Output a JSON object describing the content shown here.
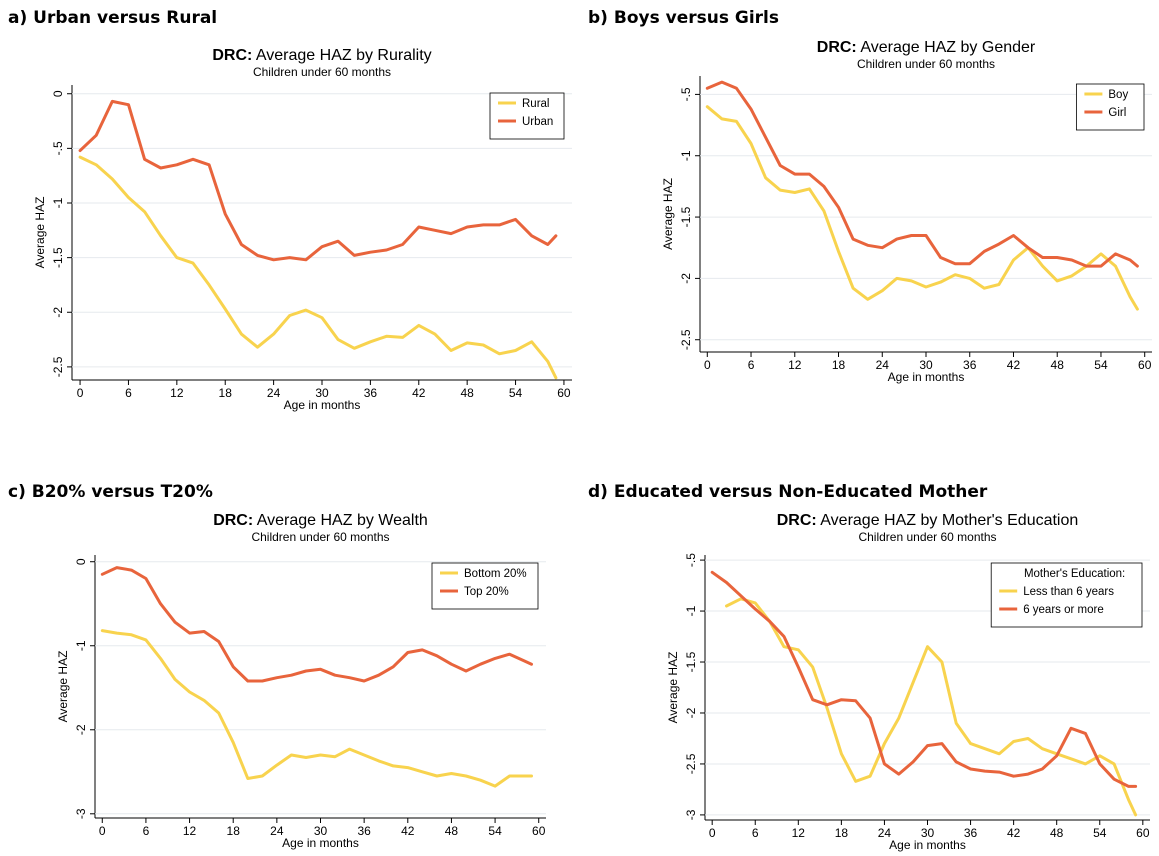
{
  "chart_data": [
    {
      "type": "line",
      "panel": "a) Urban versus Rural",
      "title_prefix": "DRC:",
      "title": "Average HAZ by Rurality",
      "subtitle": "Children under 60 months",
      "xlabel": "Age in months",
      "ylabel": "Average HAZ",
      "x": [
        0,
        2,
        4,
        6,
        8,
        10,
        12,
        14,
        16,
        18,
        20,
        22,
        24,
        26,
        28,
        30,
        32,
        34,
        36,
        38,
        40,
        42,
        44,
        46,
        48,
        50,
        52,
        54,
        56,
        58,
        59
      ],
      "xlim": [
        -1,
        61
      ],
      "xticks": [
        0,
        6,
        12,
        18,
        24,
        30,
        36,
        42,
        48,
        54,
        60
      ],
      "ylim": [
        -2.62,
        0.08
      ],
      "yticks": [
        0,
        {
          "value": -0.5,
          "label": "-.5"
        },
        -1,
        -1.5,
        -2,
        -2.5
      ],
      "grid": true,
      "legend": "top-right",
      "series": [
        {
          "name": "Rural",
          "color": "#f8d34e",
          "values": [
            -0.58,
            -0.65,
            -0.78,
            -0.95,
            -1.08,
            -1.3,
            -1.5,
            -1.55,
            -1.75,
            -1.97,
            -2.2,
            -2.32,
            -2.2,
            -2.03,
            -1.98,
            -2.05,
            -2.25,
            -2.33,
            -2.27,
            -2.22,
            -2.23,
            -2.12,
            -2.2,
            -2.35,
            -2.28,
            -2.3,
            -2.38,
            -2.35,
            -2.27,
            -2.45,
            -2.6
          ]
        },
        {
          "name": "Urban",
          "color": "#e8643c",
          "values": [
            -0.52,
            -0.38,
            -0.07,
            -0.1,
            -0.6,
            -0.68,
            -0.65,
            -0.6,
            -0.65,
            -1.1,
            -1.38,
            -1.48,
            -1.52,
            -1.5,
            -1.52,
            -1.4,
            -1.35,
            -1.48,
            -1.45,
            -1.43,
            -1.38,
            -1.22,
            -1.25,
            -1.28,
            -1.22,
            -1.2,
            -1.2,
            -1.15,
            -1.3,
            -1.38,
            -1.3
          ]
        }
      ]
    },
    {
      "type": "line",
      "panel": "b) Boys versus Girls",
      "title_prefix": "DRC:",
      "title": "Average HAZ by Gender",
      "subtitle": "Children under 60 months",
      "xlabel": "Age in months",
      "ylabel": "Average HAZ",
      "x": [
        0,
        2,
        4,
        6,
        8,
        10,
        12,
        14,
        16,
        18,
        20,
        22,
        24,
        26,
        28,
        30,
        32,
        34,
        36,
        38,
        40,
        42,
        44,
        46,
        48,
        50,
        52,
        54,
        56,
        58,
        59
      ],
      "xlim": [
        -1,
        61
      ],
      "xticks": [
        0,
        6,
        12,
        18,
        24,
        30,
        36,
        42,
        48,
        54,
        60
      ],
      "ylim": [
        -2.6,
        -0.35
      ],
      "yticks": [
        {
          "value": -0.5,
          "label": "-.5"
        },
        -1,
        -1.5,
        -2,
        -2.5
      ],
      "grid": true,
      "legend": "top-right",
      "series": [
        {
          "name": "Boy",
          "color": "#f8d34e",
          "values": [
            -0.6,
            -0.7,
            -0.72,
            -0.9,
            -1.18,
            -1.28,
            -1.3,
            -1.27,
            -1.45,
            -1.78,
            -2.08,
            -2.17,
            -2.1,
            -2.0,
            -2.02,
            -2.07,
            -2.03,
            -1.97,
            -2.0,
            -2.08,
            -2.05,
            -1.85,
            -1.75,
            -1.9,
            -2.02,
            -1.98,
            -1.9,
            -1.8,
            -1.9,
            -2.15,
            -2.25
          ]
        },
        {
          "name": "Girl",
          "color": "#e8643c",
          "values": [
            -0.45,
            -0.4,
            -0.45,
            -0.62,
            -0.85,
            -1.08,
            -1.15,
            -1.15,
            -1.25,
            -1.42,
            -1.68,
            -1.73,
            -1.75,
            -1.68,
            -1.65,
            -1.65,
            -1.83,
            -1.88,
            -1.88,
            -1.78,
            -1.72,
            -1.65,
            -1.75,
            -1.83,
            -1.83,
            -1.85,
            -1.9,
            -1.9,
            -1.8,
            -1.85,
            -1.9
          ]
        }
      ]
    },
    {
      "type": "line",
      "panel": "c) B20% versus T20%",
      "title_prefix": "DRC:",
      "title": "Average HAZ by Wealth",
      "subtitle": "Children under 60 months",
      "xlabel": "Age in months",
      "ylabel": "Average HAZ",
      "x": [
        0,
        2,
        4,
        6,
        8,
        10,
        12,
        14,
        16,
        18,
        20,
        22,
        24,
        26,
        28,
        30,
        32,
        34,
        36,
        38,
        40,
        42,
        44,
        46,
        48,
        50,
        52,
        54,
        56,
        58,
        59
      ],
      "xlim": [
        -1,
        61
      ],
      "xticks": [
        0,
        6,
        12,
        18,
        24,
        30,
        36,
        42,
        48,
        54,
        60
      ],
      "ylim": [
        -3.05,
        0.08
      ],
      "yticks": [
        0,
        -1,
        -2,
        -3
      ],
      "grid": true,
      "legend": "top-right",
      "series": [
        {
          "name": "Bottom 20%",
          "color": "#f8d34e",
          "values": [
            -0.82,
            -0.85,
            -0.87,
            -0.93,
            -1.15,
            -1.4,
            -1.55,
            -1.65,
            -1.8,
            -2.15,
            -2.58,
            -2.55,
            -2.42,
            -2.3,
            -2.33,
            -2.3,
            -2.32,
            -2.23,
            -2.3,
            -2.37,
            -2.43,
            -2.45,
            -2.5,
            -2.55,
            -2.52,
            -2.55,
            -2.6,
            -2.67,
            -2.55,
            -2.55,
            -2.55
          ]
        },
        {
          "name": "Top 20%",
          "color": "#e8643c",
          "values": [
            -0.15,
            -0.07,
            -0.1,
            -0.2,
            -0.5,
            -0.72,
            -0.85,
            -0.83,
            -0.95,
            -1.25,
            -1.42,
            -1.42,
            -1.38,
            -1.35,
            -1.3,
            -1.28,
            -1.35,
            -1.38,
            -1.42,
            -1.35,
            -1.25,
            -1.08,
            -1.05,
            -1.12,
            -1.22,
            -1.3,
            -1.22,
            -1.15,
            -1.1,
            -1.18,
            -1.22
          ]
        }
      ]
    },
    {
      "type": "line",
      "panel": "d) Educated versus Non-Educated Mother",
      "title_prefix": "DRC:",
      "title": "Average HAZ by Mother's Education",
      "subtitle": "Children under 60 months",
      "xlabel": "Age in months",
      "ylabel": "Average HAZ",
      "legend_title": "Mother's Education:",
      "x": [
        0,
        2,
        4,
        6,
        8,
        10,
        12,
        14,
        16,
        18,
        20,
        22,
        24,
        26,
        28,
        30,
        32,
        34,
        36,
        38,
        40,
        42,
        44,
        46,
        48,
        50,
        52,
        54,
        56,
        58,
        59
      ],
      "xlim": [
        -1,
        61
      ],
      "xticks": [
        0,
        6,
        12,
        18,
        24,
        30,
        36,
        42,
        48,
        54,
        60
      ],
      "ylim": [
        -3.05,
        -0.45
      ],
      "yticks": [
        {
          "value": -0.5,
          "label": "-.5"
        },
        -1,
        -1.5,
        -2,
        -2.5,
        -3
      ],
      "grid": true,
      "legend": "top-right",
      "series": [
        {
          "name": "Less than 6 years",
          "color": "#f8d34e",
          "values": [
            null,
            -0.95,
            -0.88,
            -0.92,
            -1.1,
            -1.35,
            -1.38,
            -1.55,
            -1.95,
            -2.4,
            -2.67,
            -2.62,
            -2.3,
            -2.05,
            -1.7,
            -1.35,
            -1.5,
            -2.1,
            -2.3,
            -2.35,
            -2.4,
            -2.28,
            -2.25,
            -2.35,
            -2.4,
            -2.45,
            -2.5,
            -2.42,
            -2.5,
            -2.85,
            -3.0
          ]
        },
        {
          "name": "6 years or more",
          "color": "#e8643c",
          "values": [
            -0.62,
            -0.72,
            -0.85,
            -0.98,
            -1.1,
            -1.25,
            -1.55,
            -1.87,
            -1.92,
            -1.87,
            -1.88,
            -2.05,
            -2.5,
            -2.6,
            -2.48,
            -2.32,
            -2.3,
            -2.48,
            -2.55,
            -2.57,
            -2.58,
            -2.62,
            -2.6,
            -2.55,
            -2.42,
            -2.15,
            -2.2,
            -2.5,
            -2.65,
            -2.72,
            -2.72
          ]
        }
      ]
    }
  ]
}
